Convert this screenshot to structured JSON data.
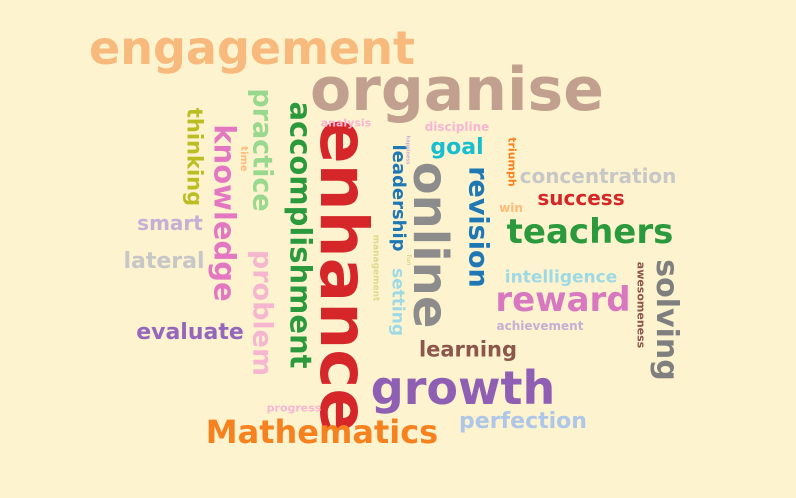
{
  "words": [
    {
      "text": "engagement",
      "color": "#f8b97c"
    },
    {
      "text": "organise",
      "color": "#c2a08f"
    },
    {
      "text": "enhance",
      "color": "#d5262a"
    },
    {
      "text": "online",
      "color": "#8c8c8c"
    },
    {
      "text": "growth",
      "color": "#8f5fb3"
    },
    {
      "text": "Mathematics",
      "color": "#f6821f"
    },
    {
      "text": "teachers",
      "color": "#2a9a3c"
    },
    {
      "text": "reward",
      "color": "#d778c0"
    },
    {
      "text": "accomplishment",
      "color": "#2a9a3c"
    },
    {
      "text": "practice",
      "color": "#98d88f"
    },
    {
      "text": "knowledge",
      "color": "#e377c2"
    },
    {
      "text": "problem",
      "color": "#f7b6cf"
    },
    {
      "text": "revision",
      "color": "#1f77b4"
    },
    {
      "text": "solving",
      "color": "#7f7f7f"
    },
    {
      "text": "thinking",
      "color": "#bcbd22"
    },
    {
      "text": "leadership",
      "color": "#1f77b4"
    },
    {
      "text": "setting",
      "color": "#9edae5"
    },
    {
      "text": "concentration",
      "color": "#c7c7c7"
    },
    {
      "text": "success",
      "color": "#d62728"
    },
    {
      "text": "learning",
      "color": "#8c564b"
    },
    {
      "text": "evaluate",
      "color": "#9467bd"
    },
    {
      "text": "lateral",
      "color": "#c7c7c7"
    },
    {
      "text": "smart",
      "color": "#c5b0d5"
    },
    {
      "text": "perfection",
      "color": "#aec7e8"
    },
    {
      "text": "goal",
      "color": "#17becf"
    },
    {
      "text": "intelligence",
      "color": "#9edae5"
    },
    {
      "text": "discipline",
      "color": "#f7b6d2"
    },
    {
      "text": "analysis",
      "color": "#f7b6d2"
    },
    {
      "text": "awesomeness",
      "color": "#8c564b"
    },
    {
      "text": "achievement",
      "color": "#c5b0d5"
    },
    {
      "text": "progress",
      "color": "#f7b6d2"
    },
    {
      "text": "win",
      "color": "#ffbb78"
    },
    {
      "text": "triumph",
      "color": "#f6821f"
    },
    {
      "text": "time",
      "color": "#ffbb78"
    },
    {
      "text": "management",
      "color": "#dbdb8d"
    },
    {
      "text": "happiness",
      "color": "#c5b0d5"
    },
    {
      "text": "fun",
      "color": "#dbdb8d"
    }
  ]
}
